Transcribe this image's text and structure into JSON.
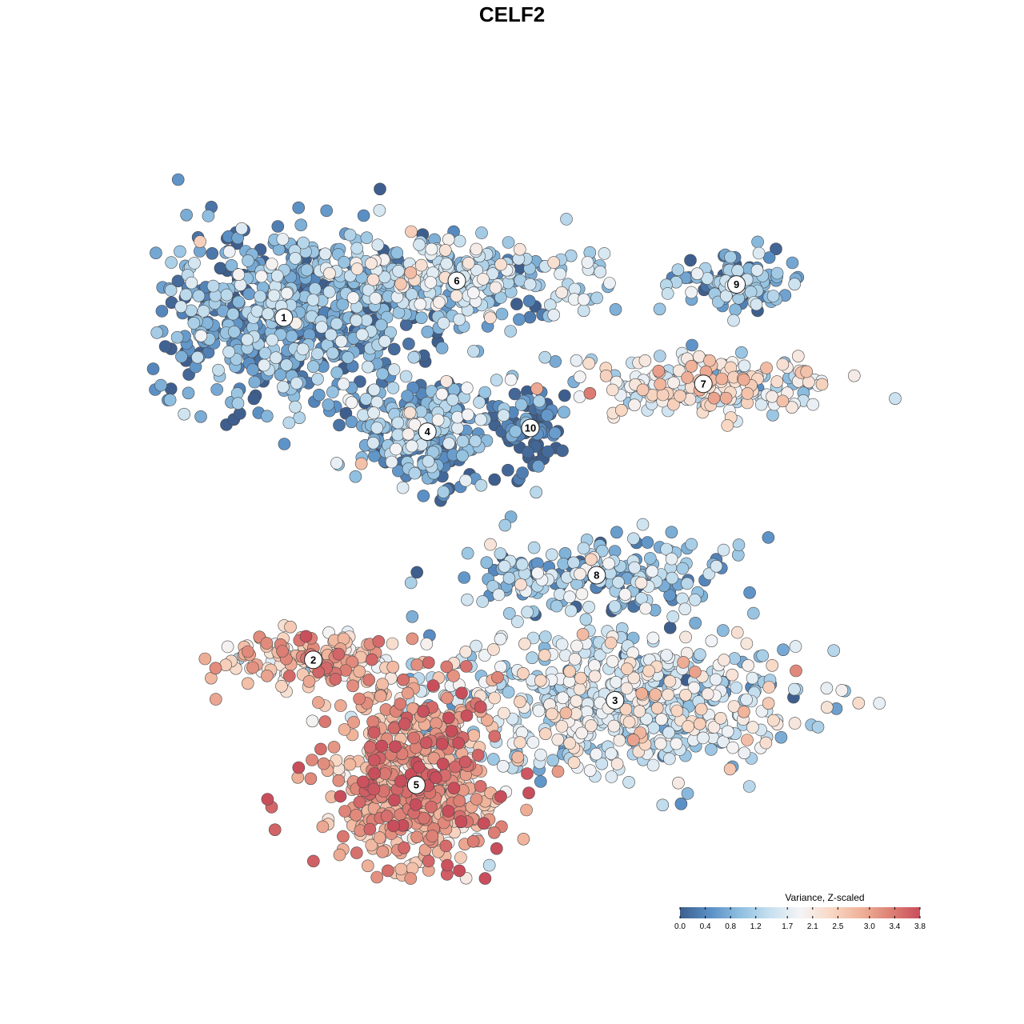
{
  "chart_data": {
    "type": "scatter",
    "title": "CELF2",
    "xlabel": "",
    "ylabel": "",
    "grid": false,
    "axes_visible": false,
    "legend_placement": "bottom-right",
    "color_scale": {
      "title": "Variance, Z-scaled",
      "min": 0.0,
      "max": 3.8,
      "ticks": [
        "0.0",
        "0.4",
        "0.8",
        "1.2",
        "1.7",
        "2.1",
        "2.5",
        "3.0",
        "3.4",
        "3.8"
      ],
      "tick_values": [
        0.0,
        0.4,
        0.8,
        1.2,
        1.7,
        2.1,
        2.5,
        3.0,
        3.4,
        3.8
      ],
      "colors": [
        "#3e5f8e",
        "#5a8fc5",
        "#8fbfe0",
        "#c7e0ef",
        "#f4f4f6",
        "#f8d9c6",
        "#f0b39a",
        "#de8276",
        "#c94e5c"
      ]
    },
    "clusters": [
      {
        "label": "1",
        "x": -6.2,
        "y": 5.5,
        "sx": 1.9,
        "sy": 1.25,
        "mean_value": 0.6,
        "n": 650
      },
      {
        "label": "2",
        "x": -5.4,
        "y": -3.8,
        "sx": 1.3,
        "sy": 0.45,
        "mean_value": 2.7,
        "n": 160
      },
      {
        "label": "3",
        "x": 2.8,
        "y": -4.9,
        "sx": 2.5,
        "sy": 0.95,
        "mean_value": 1.5,
        "n": 620
      },
      {
        "label": "4",
        "x": -2.3,
        "y": 2.4,
        "sx": 0.95,
        "sy": 0.75,
        "mean_value": 0.7,
        "n": 300
      },
      {
        "label": "5",
        "x": -2.6,
        "y": -7.2,
        "sx": 1.15,
        "sy": 1.3,
        "mean_value": 2.9,
        "n": 620
      },
      {
        "label": "6",
        "x": -1.5,
        "y": 6.5,
        "sx": 2.0,
        "sy": 0.55,
        "mean_value": 1.1,
        "n": 300
      },
      {
        "label": "7",
        "x": 5.2,
        "y": 3.7,
        "sx": 1.7,
        "sy": 0.45,
        "mean_value": 1.9,
        "n": 200
      },
      {
        "label": "8",
        "x": 2.3,
        "y": -1.5,
        "sx": 1.8,
        "sy": 0.55,
        "mean_value": 1.0,
        "n": 200
      },
      {
        "label": "9",
        "x": 6.1,
        "y": 6.4,
        "sx": 0.8,
        "sy": 0.35,
        "mean_value": 0.8,
        "n": 110
      },
      {
        "label": "10",
        "x": 0.5,
        "y": 2.5,
        "sx": 0.4,
        "sy": 0.7,
        "mean_value": 0.2,
        "n": 80
      }
    ],
    "xlim": [
      -11,
      11
    ],
    "ylim": [
      -11,
      11
    ]
  }
}
